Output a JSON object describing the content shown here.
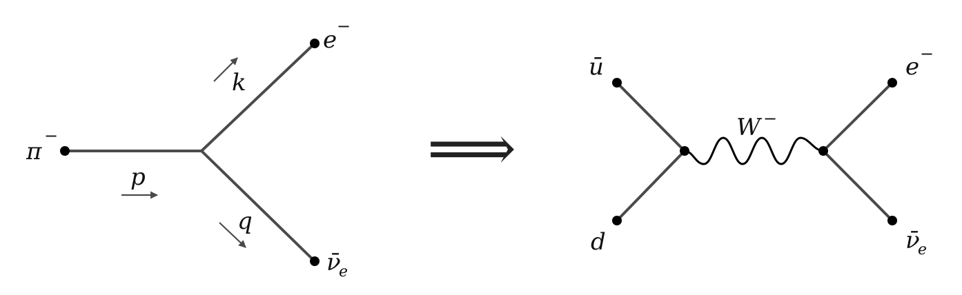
{
  "left_diagram": {
    "pion": {
      "symbol": "π",
      "charge": "−"
    },
    "electron": {
      "symbol": "e",
      "charge": "−"
    },
    "antineutrino": {
      "symbol": "ν̄",
      "sub": "e"
    },
    "momenta": {
      "p": "p",
      "k": "k",
      "q": "q"
    }
  },
  "implies": "⟹",
  "right_diagram": {
    "ubar": "ū",
    "d": "d",
    "boson": {
      "symbol": "W",
      "charge": "−"
    },
    "electron": {
      "symbol": "e",
      "charge": "−"
    },
    "antineutrino": {
      "symbol": "ν̄",
      "sub": "e"
    }
  }
}
